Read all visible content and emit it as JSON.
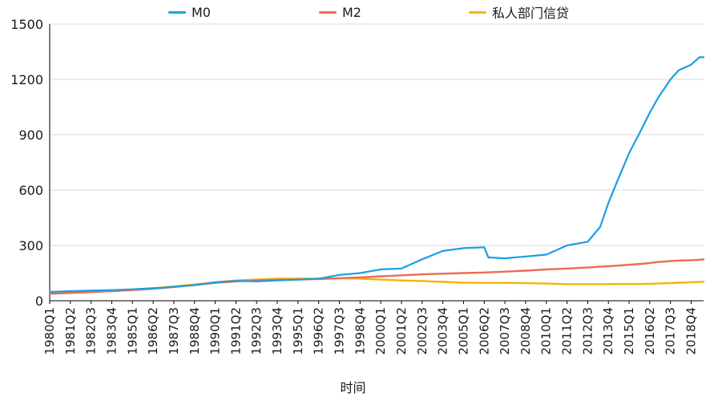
{
  "chart_data": {
    "type": "line",
    "title": "",
    "xlabel": "时间",
    "ylabel": "",
    "ylim": [
      0,
      1500
    ],
    "yticks": [
      "0",
      "300",
      "600",
      "900",
      "1200",
      "1500"
    ],
    "grid": "horizontal",
    "legend_position": "top",
    "x_tick_labels": [
      "1980Q1",
      "1981Q2",
      "1982Q3",
      "1983Q4",
      "1985Q1",
      "1986Q2",
      "1987Q3",
      "1988Q4",
      "1990Q1",
      "1991Q2",
      "1992Q3",
      "1993Q4",
      "1995Q1",
      "1996Q2",
      "1997Q3",
      "1998Q4",
      "2000Q1",
      "2001Q2",
      "2002Q3",
      "2003Q4",
      "2005Q1",
      "2006Q2",
      "2007Q3",
      "2008Q4",
      "2010Q1",
      "2011Q2",
      "2012Q3",
      "2013Q4",
      "2015Q1",
      "2016Q2",
      "2017Q3",
      "2018Q4"
    ],
    "x": [
      "1980Q1",
      "1981Q2",
      "1982Q3",
      "1983Q4",
      "1985Q1",
      "1986Q2",
      "1987Q3",
      "1988Q4",
      "1990Q1",
      "1991Q2",
      "1992Q3",
      "1993Q4",
      "1995Q1",
      "1996Q2",
      "1997Q3",
      "1998Q4",
      "2000Q1",
      "2001Q2",
      "2002Q3",
      "2003Q4",
      "2005Q1",
      "2006Q2",
      "2006Q3",
      "2007Q3",
      "2008Q4",
      "2010Q1",
      "2011Q2",
      "2012Q3",
      "2013Q2",
      "2013Q4",
      "2014Q2",
      "2015Q1",
      "2015Q4",
      "2016Q2",
      "2016Q4",
      "2017Q3",
      "2018Q1",
      "2018Q4",
      "2019Q2",
      "2019Q3"
    ],
    "series": [
      {
        "name": "M0",
        "color": "#1a9fe3",
        "values": [
          48,
          52,
          55,
          58,
          62,
          68,
          75,
          85,
          100,
          108,
          105,
          110,
          115,
          120,
          140,
          150,
          170,
          175,
          225,
          270,
          285,
          290,
          235,
          230,
          240,
          250,
          300,
          320,
          400,
          530,
          640,
          800,
          930,
          1020,
          1100,
          1200,
          1250,
          1280,
          1320,
          1320
        ]
      },
      {
        "name": "M2",
        "color": "#f06a55",
        "values": [
          38,
          42,
          47,
          52,
          58,
          65,
          75,
          85,
          97,
          105,
          110,
          113,
          115,
          118,
          122,
          127,
          132,
          138,
          143,
          147,
          150,
          153,
          154,
          158,
          163,
          170,
          175,
          180,
          185,
          187,
          190,
          195,
          200,
          205,
          210,
          215,
          218,
          220,
          222,
          225
        ]
      },
      {
        "name": "私人部门信贷",
        "color": "#f5b400",
        "values": [
          40,
          45,
          50,
          55,
          60,
          68,
          78,
          88,
          100,
          110,
          115,
          120,
          120,
          120,
          122,
          120,
          115,
          110,
          107,
          102,
          98,
          97,
          97,
          97,
          96,
          93,
          90,
          90,
          90,
          90,
          91,
          91,
          91,
          92,
          94,
          96,
          98,
          100,
          102,
          103
        ]
      }
    ]
  }
}
